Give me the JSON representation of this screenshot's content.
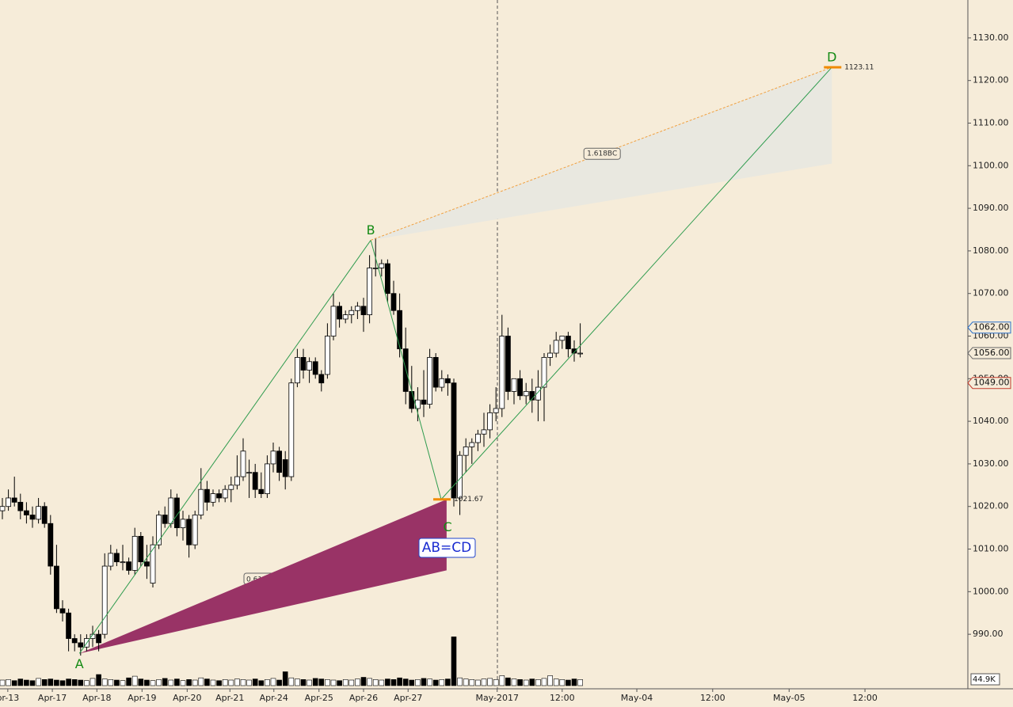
{
  "chart_data": {
    "type": "candlestick",
    "open": [
      1019,
      1020,
      1022,
      1021,
      1019,
      1018,
      1017,
      1020,
      1016,
      1006,
      996,
      995,
      989,
      988,
      987,
      989,
      990,
      990,
      1006,
      1009,
      1007,
      1007,
      1005,
      1013,
      1007,
      1002,
      1011,
      1018,
      1016,
      1022,
      1015,
      1017,
      1011,
      1018,
      1024,
      1021,
      1023,
      1022,
      1024,
      1025,
      1027,
      1028,
      1028,
      1024,
      1023,
      1030,
      1033,
      1031,
      1027,
      1049,
      1055,
      1052,
      1054,
      1051,
      1051,
      1060,
      1067,
      1064,
      1065,
      1066,
      1067,
      1065,
      1076,
      1076,
      1077,
      1070,
      1066,
      1057,
      1047,
      1043,
      1045,
      1044,
      1055,
      1048,
      1050,
      1049,
      1022,
      1032,
      1034,
      1035,
      1037,
      1038,
      1042,
      1043,
      1060,
      1047,
      1050,
      1046,
      1047,
      1045,
      1048,
      1055,
      1056,
      1059,
      1060,
      1057,
      1056
    ],
    "high": [
      1022,
      1024,
      1027,
      1023,
      1021,
      1020,
      1022,
      1021,
      1018,
      1011,
      998,
      996,
      990,
      990,
      990,
      992,
      991,
      1009,
      1011,
      1010,
      1011,
      1008,
      1015,
      1014,
      1011,
      1013,
      1019,
      1020,
      1024,
      1023,
      1019,
      1018,
      1019,
      1029,
      1026,
      1024,
      1024,
      1025,
      1027,
      1032,
      1036,
      1031,
      1030,
      1028,
      1032,
      1035,
      1034,
      1033,
      1050,
      1057,
      1057,
      1055,
      1055,
      1052,
      1063,
      1070,
      1068,
      1066,
      1067,
      1068,
      1069,
      1079,
      1083,
      1078,
      1078,
      1073,
      1070,
      1062,
      1053,
      1048,
      1052,
      1057,
      1056,
      1052,
      1051,
      1050,
      1033,
      1036,
      1036,
      1038,
      1042,
      1044,
      1048,
      1065,
      1062,
      1050,
      1052,
      1049,
      1050,
      1052,
      1056,
      1058,
      1061,
      1060,
      1061,
      1059,
      1063
    ],
    "low": [
      1017,
      1019,
      1020,
      1017,
      1016,
      1015,
      1016,
      1015,
      1004,
      995,
      993,
      986,
      986,
      985,
      986,
      987,
      986,
      989,
      1005,
      1006,
      1005,
      1004,
      1004,
      1006,
      1003,
      1001,
      1010,
      1015,
      1015,
      1013,
      1012,
      1008,
      1010,
      1017,
      1019,
      1020,
      1021,
      1021,
      1021,
      1024,
      1026,
      1022,
      1022,
      1022,
      1022,
      1028,
      1026,
      1024,
      1026,
      1048,
      1050,
      1049,
      1050,
      1047,
      1050,
      1059,
      1062,
      1063,
      1063,
      1064,
      1061,
      1063,
      1074,
      1074,
      1068,
      1065,
      1055,
      1044,
      1042,
      1040,
      1041,
      1043,
      1047,
      1047,
      1046,
      1020,
      1018,
      1028,
      1030,
      1033,
      1034,
      1036,
      1040,
      1041,
      1045,
      1044,
      1045,
      1044,
      1042,
      1040,
      1040,
      1053,
      1055,
      1057,
      1055,
      1054,
      1055
    ],
    "close": [
      1020,
      1022,
      1021,
      1019,
      1018,
      1017,
      1020,
      1016,
      1006,
      996,
      995,
      989,
      988,
      987,
      989,
      990,
      988,
      1006,
      1009,
      1007,
      1007,
      1005,
      1013,
      1007,
      1006,
      1011,
      1018,
      1016,
      1022,
      1015,
      1017,
      1011,
      1018,
      1024,
      1021,
      1023,
      1022,
      1024,
      1025,
      1027,
      1033,
      1028,
      1024,
      1023,
      1030,
      1033,
      1028,
      1027,
      1049,
      1055,
      1052,
      1054,
      1051,
      1049,
      1060,
      1067,
      1064,
      1065,
      1066,
      1067,
      1065,
      1076,
      1076,
      1077,
      1070,
      1066,
      1057,
      1047,
      1043,
      1045,
      1044,
      1055,
      1048,
      1050,
      1049,
      1022,
      1032,
      1034,
      1035,
      1037,
      1038,
      1042,
      1043,
      1060,
      1047,
      1050,
      1046,
      1047,
      1045,
      1048,
      1055,
      1056,
      1059,
      1060,
      1057,
      1056,
      1056
    ],
    "volume": [
      10,
      11,
      9,
      12,
      10,
      9,
      13,
      11,
      12,
      10,
      9,
      12,
      11,
      10,
      9,
      13,
      20,
      12,
      11,
      10,
      9,
      14,
      17,
      12,
      10,
      9,
      11,
      13,
      10,
      12,
      9,
      11,
      10,
      14,
      12,
      10,
      9,
      11,
      10,
      12,
      11,
      10,
      12,
      9,
      11,
      13,
      10,
      25,
      14,
      12,
      11,
      10,
      13,
      12,
      11,
      10,
      9,
      11,
      10,
      12,
      15,
      13,
      11,
      10,
      12,
      11,
      14,
      12,
      10,
      11,
      13,
      12,
      10,
      11,
      12,
      88,
      14,
      12,
      11,
      10,
      12,
      13,
      11,
      18,
      14,
      12,
      11,
      10,
      12,
      11,
      13,
      18,
      12,
      11,
      10,
      12,
      11
    ],
    "volume_lim": [
      0,
      100
    ],
    "volume_label": "44.9K",
    "ylim": [
      977.2,
      1138.9
    ],
    "yticks": [
      {
        "value": 990,
        "label": "990.00"
      },
      {
        "value": 1000,
        "label": "1000.00"
      },
      {
        "value": 1010,
        "label": "1010.00"
      },
      {
        "value": 1020,
        "label": "1020.00"
      },
      {
        "value": 1030,
        "label": "1030.00"
      },
      {
        "value": 1040,
        "label": "1040.00"
      },
      {
        "value": 1050,
        "label": "1050.00"
      },
      {
        "value": 1060,
        "label": "1060.00"
      },
      {
        "value": 1070,
        "label": "1070.00"
      },
      {
        "value": 1080,
        "label": "1080.00"
      },
      {
        "value": 1090,
        "label": "1090.00"
      },
      {
        "value": 1100,
        "label": "1100.00"
      },
      {
        "value": 1110,
        "label": "1110.00"
      },
      {
        "value": 1120,
        "label": "1120.00"
      },
      {
        "value": 1130,
        "label": "1130.00"
      }
    ],
    "xticks": [
      {
        "value": 0.9,
        "label": "pr-13"
      },
      {
        "value": 8.3,
        "label": "Apr-17"
      },
      {
        "value": 15.7,
        "label": "Apr-18"
      },
      {
        "value": 23.2,
        "label": "Apr-19"
      },
      {
        "value": 30.7,
        "label": "Apr-20"
      },
      {
        "value": 37.8,
        "label": "Apr-21"
      },
      {
        "value": 45.1,
        "label": "Apr-24"
      },
      {
        "value": 52.6,
        "label": "Apr-25"
      },
      {
        "value": 60,
        "label": "Apr-26"
      },
      {
        "value": 67.4,
        "label": "Apr-27"
      },
      {
        "value": 82.2,
        "label": "May-2017"
      },
      {
        "value": 93,
        "label": "12:00"
      },
      {
        "value": 105.4,
        "label": "May-04"
      },
      {
        "value": 118,
        "label": "12:00"
      },
      {
        "value": 130.7,
        "label": "May-05"
      },
      {
        "value": 143.3,
        "label": "12:00"
      }
    ],
    "price_markers": [
      {
        "value": 1062,
        "label": "1062.00",
        "color": "#2a6fc9"
      },
      {
        "value": 1056,
        "label": "1056.00",
        "color": "#666666"
      },
      {
        "value": 1049,
        "label": "1049.00",
        "color": "#c0392b"
      }
    ],
    "pattern": {
      "name": "AB=CD",
      "points": [
        {
          "label": "A",
          "x": 12.8,
          "price": 985.5
        },
        {
          "label": "B",
          "x": 61.2,
          "price": 1082.5
        },
        {
          "label": "C",
          "x": 72.9,
          "price": 1021.67
        },
        {
          "label": "D",
          "x": 137.8,
          "price": 1123.11
        }
      ],
      "c_level_label": "1021.67",
      "d_level_label": "1123.11",
      "ac_ratio_label": "0.618",
      "bd_ratio_label": "1.618BC",
      "ac_zone": {
        "x": 73.8,
        "low": 1005
      },
      "bd_zone": {
        "low": 1100.5
      }
    }
  }
}
